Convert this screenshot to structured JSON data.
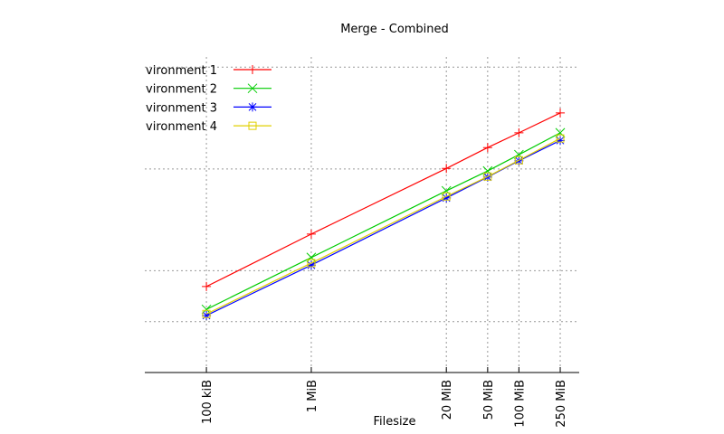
{
  "chart_data": {
    "type": "line",
    "title": "Merge - Combined",
    "x_label": "Filesize",
    "x": [
      100,
      1024,
      20480,
      51200,
      102400,
      256000
    ],
    "xscale": "log",
    "xlim": [
      25.5,
      390000
    ],
    "xticks": [
      {
        "value": 100,
        "label": "100 kiB"
      },
      {
        "value": 1024,
        "label": "1 MiB"
      },
      {
        "value": 20480,
        "label": "20 MiB"
      },
      {
        "value": 51200,
        "label": "50 MiB"
      },
      {
        "value": 102400,
        "label": "100 MiB"
      },
      {
        "value": 256000,
        "label": "250 MiB"
      }
    ],
    "ylim": [
      0,
      6.2
    ],
    "yticks": [
      1,
      2,
      4,
      6
    ],
    "grid": true,
    "legend": "upper left",
    "series": [
      {
        "name": "vironment 1",
        "color": "#ff0000",
        "marker": "plus",
        "values": [
          1.69,
          2.72,
          4.01,
          4.42,
          4.71,
          5.1
        ]
      },
      {
        "name": "vironment 2",
        "color": "#00cc00",
        "marker": "cross",
        "values": [
          1.24,
          2.26,
          3.57,
          3.96,
          4.28,
          4.71
        ]
      },
      {
        "name": "vironment 3",
        "color": "#0000ff",
        "marker": "star",
        "values": [
          1.12,
          2.11,
          3.43,
          3.84,
          4.16,
          4.56
        ]
      },
      {
        "name": "vironment 4",
        "color": "#e0d000",
        "marker": "square",
        "values": [
          1.15,
          2.15,
          3.46,
          3.85,
          4.17,
          4.6
        ]
      }
    ]
  }
}
